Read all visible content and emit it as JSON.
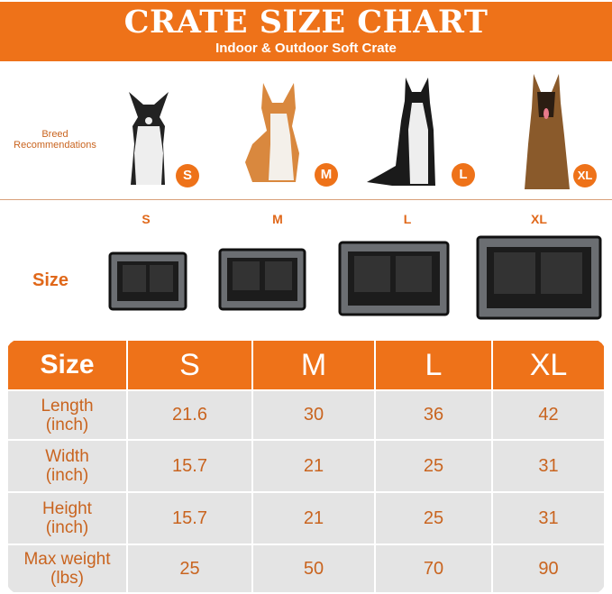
{
  "header": {
    "title": "CRATE SIZE CHART",
    "subtitle": "Indoor & Outdoor Soft Crate"
  },
  "breeds": {
    "label": "Breed Recommendations",
    "dogs": [
      {
        "size": "S",
        "breed_icon": "french-bulldog"
      },
      {
        "size": "M",
        "breed_icon": "corgi"
      },
      {
        "size": "L",
        "breed_icon": "border-collie"
      },
      {
        "size": "XL",
        "breed_icon": "german-shepherd"
      }
    ]
  },
  "crates": {
    "label": "Size",
    "sizes": [
      "S",
      "M",
      "L",
      "XL"
    ]
  },
  "table": {
    "headers": [
      "Size",
      "S",
      "M",
      "L",
      "XL"
    ],
    "rows": [
      {
        "label": "Length",
        "unit": "(inch)",
        "values": [
          "21.6",
          "30",
          "36",
          "42"
        ]
      },
      {
        "label": "Width",
        "unit": "(inch)",
        "values": [
          "15.7",
          "21",
          "25",
          "31"
        ]
      },
      {
        "label": "Height",
        "unit": "(inch)",
        "values": [
          "15.7",
          "21",
          "25",
          "31"
        ]
      },
      {
        "label": "Max weight",
        "unit": "(lbs)",
        "values": [
          "25",
          "50",
          "70",
          "90"
        ]
      }
    ]
  },
  "colors": {
    "accent": "#EE7219",
    "text_orange": "#C9641F",
    "cell_bg": "#E4E4E4"
  }
}
